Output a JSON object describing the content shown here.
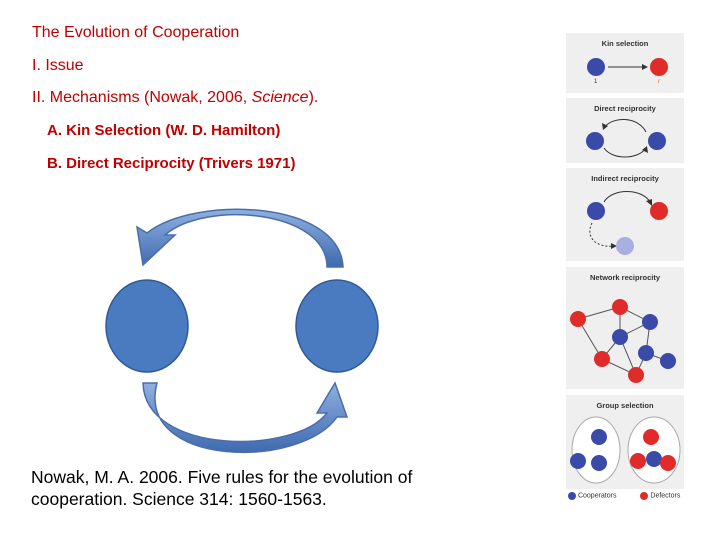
{
  "outline": {
    "title": "The Evolution of Cooperation",
    "issue": "I. Issue",
    "mechanisms_prefix": "II. Mechanisms (Nowak, 2006, ",
    "mechanisms_journal": "Science",
    "mechanisms_suffix": ").",
    "sub_a": "A. Kin Selection (W. D. Hamilton)",
    "sub_b": "B. Direct Reciprocity (Trivers 1971)"
  },
  "reference": {
    "line1": "Nowak, M. A. 2006. Five rules for the evolution of",
    "line2": "cooperation. Science 314: 1560-1563."
  },
  "figure_panels": {
    "kin_selection": {
      "title": "Kin selection",
      "left_label": "1",
      "right_label": "r"
    },
    "direct_reciprocity": {
      "title": "Direct reciprocity"
    },
    "indirect_reciprocity": {
      "title": "Indirect reciprocity"
    },
    "network_reciprocity": {
      "title": "Network reciprocity"
    },
    "group_selection": {
      "title": "Group selection"
    }
  },
  "legend": {
    "cooperators": "Cooperators",
    "defectors": "Defectors"
  },
  "colors": {
    "text_red": "#c00000",
    "blue_node": "#4a7ac0",
    "cooperator": "#3a4aa8",
    "defector": "#e02b2b",
    "panel_bg": "#efefef"
  }
}
